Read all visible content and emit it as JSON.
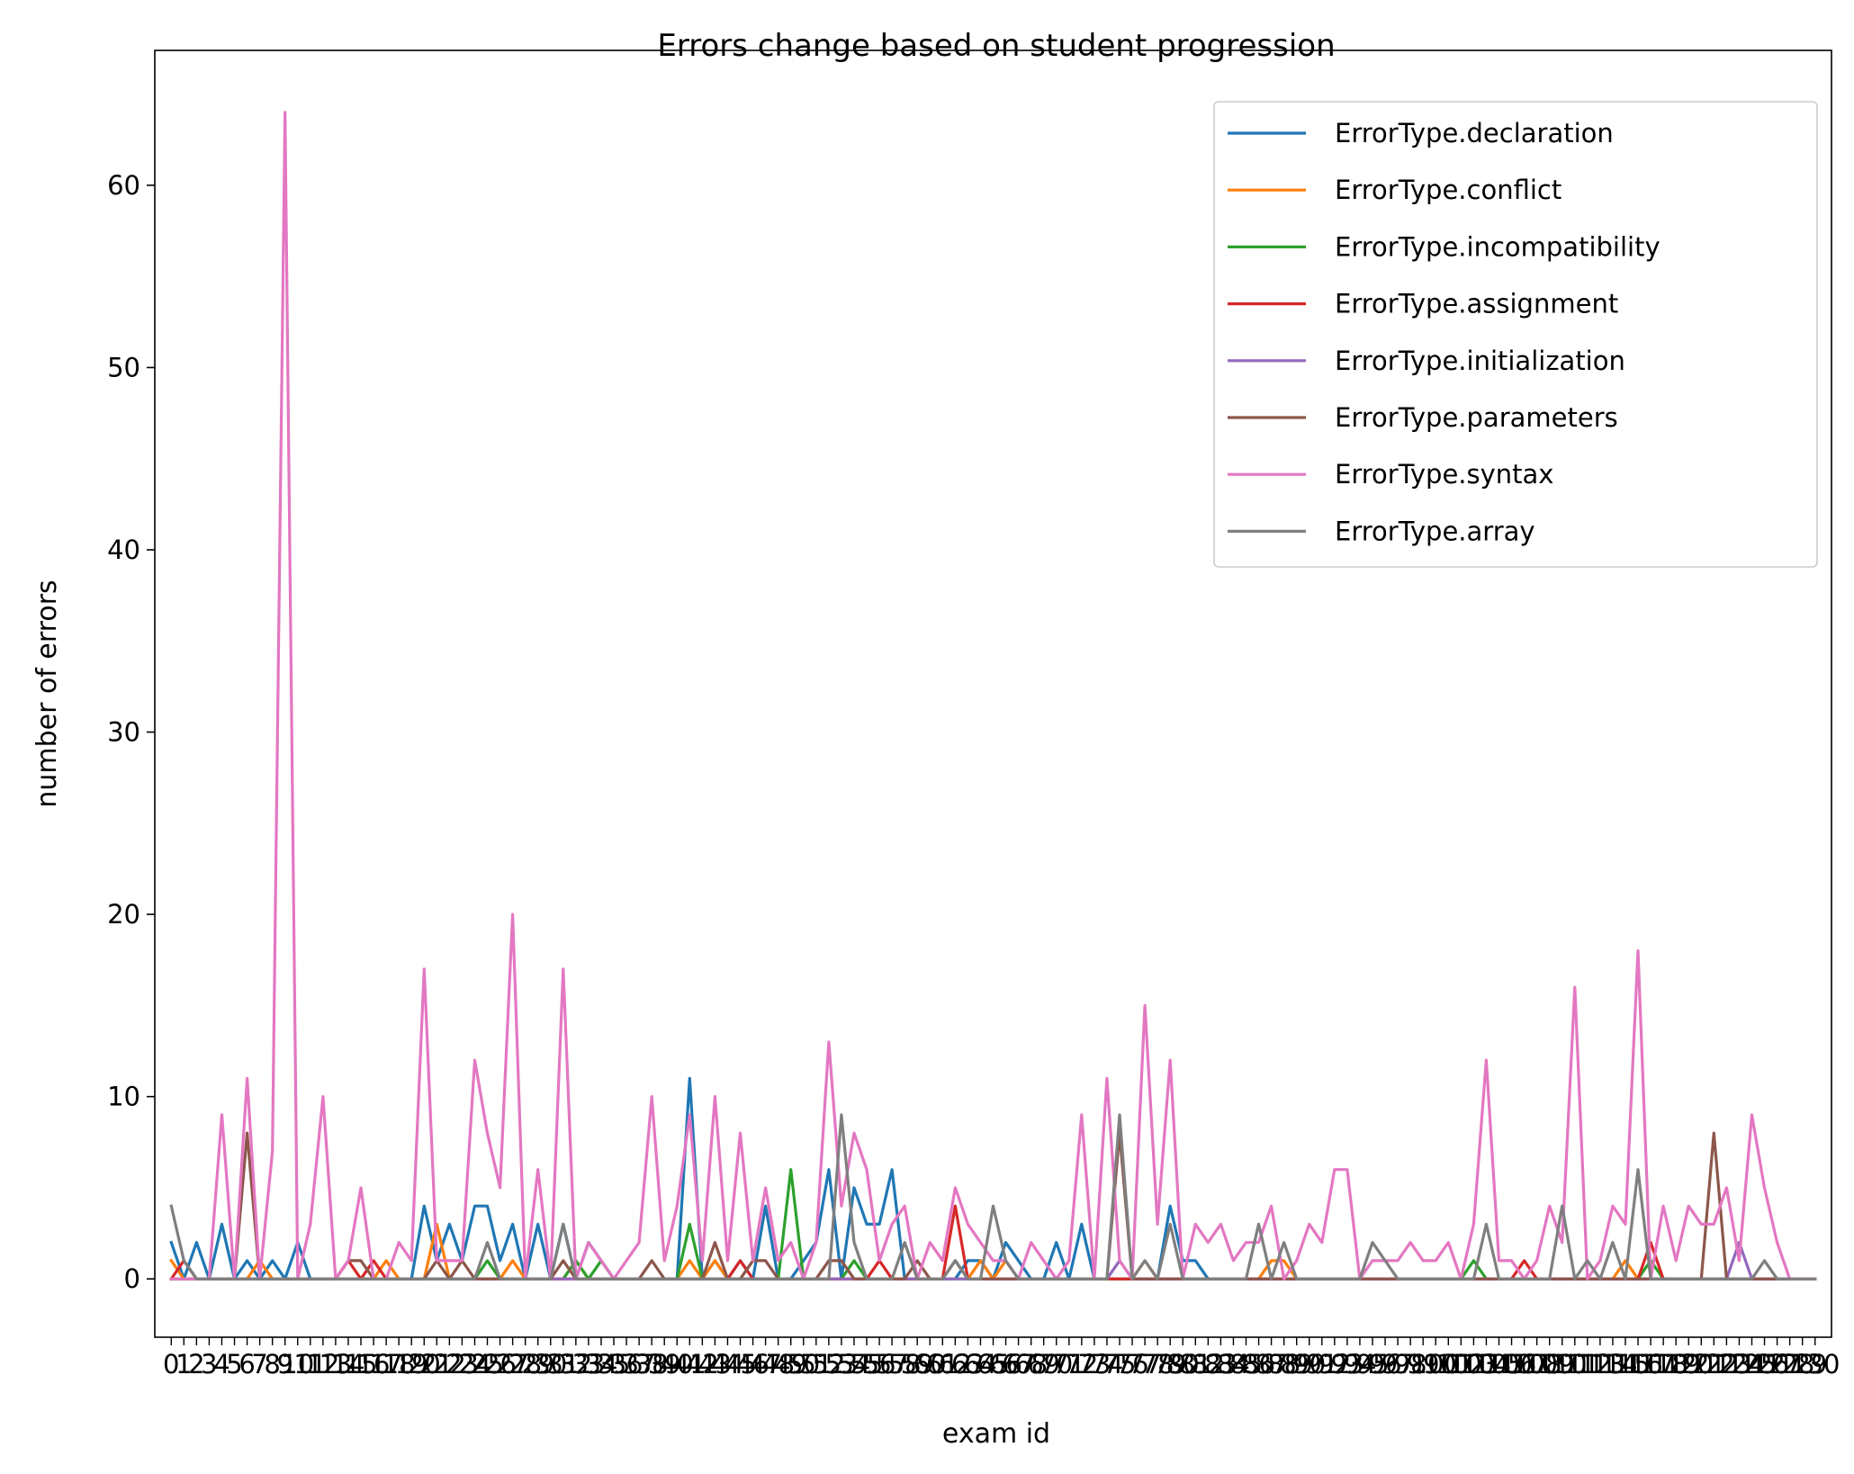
{
  "chart_data": {
    "type": "line",
    "title": "Errors change based on student progression",
    "xlabel": "exam id",
    "ylabel": "number of errors",
    "x_start": 0,
    "x_end": 130,
    "x_tick_step": 1,
    "xlim": [
      -1.3,
      131.3
    ],
    "ylim": [
      -3.2,
      67.4
    ],
    "y_ticks": [
      0,
      10,
      20,
      30,
      40,
      50,
      60
    ],
    "grid": false,
    "legend_position": "top-right",
    "series": [
      {
        "name": "ErrorType.declaration",
        "color": "#1f77b4",
        "values": [
          2,
          0,
          2,
          0,
          3,
          0,
          1,
          0,
          1,
          0,
          2,
          0,
          0,
          0,
          0,
          0,
          0,
          0,
          0,
          0,
          4,
          1,
          3,
          1,
          4,
          4,
          1,
          3,
          0,
          3,
          0,
          3,
          0,
          2,
          1,
          0,
          0,
          0,
          0,
          0,
          0,
          11,
          0,
          1,
          0,
          1,
          0,
          4,
          0,
          0,
          1,
          2,
          6,
          0,
          5,
          3,
          3,
          6,
          0,
          0,
          0,
          0,
          0,
          1,
          1,
          0,
          2,
          1,
          0,
          0,
          2,
          0,
          3,
          0,
          0,
          0,
          0,
          0,
          0,
          4,
          1,
          1,
          0,
          0,
          0,
          0,
          0,
          0,
          0,
          0,
          0,
          0,
          0,
          0,
          0,
          0,
          0,
          0,
          0,
          0,
          0,
          0,
          0,
          0,
          0,
          0,
          0,
          0,
          0,
          0,
          0,
          0,
          0,
          0,
          0,
          0,
          0,
          0,
          0,
          0,
          0,
          0,
          0,
          0,
          0,
          0,
          0,
          0,
          0,
          0,
          0
        ]
      },
      {
        "name": "ErrorType.conflict",
        "color": "#ff7f0e",
        "values": [
          1,
          0,
          0,
          0,
          0,
          0,
          0,
          1,
          0,
          0,
          0,
          0,
          0,
          0,
          0,
          0,
          0,
          1,
          0,
          0,
          0,
          3,
          0,
          0,
          0,
          0,
          0,
          1,
          0,
          0,
          0,
          0,
          1,
          0,
          0,
          0,
          0,
          0,
          0,
          0,
          0,
          1,
          0,
          1,
          0,
          0,
          0,
          0,
          0,
          0,
          0,
          0,
          0,
          0,
          0,
          0,
          0,
          0,
          0,
          0,
          0,
          0,
          1,
          0,
          1,
          0,
          1,
          0,
          0,
          0,
          0,
          0,
          0,
          0,
          0,
          0,
          0,
          1,
          0,
          0,
          0,
          0,
          0,
          0,
          0,
          0,
          0,
          1,
          1,
          0,
          0,
          0,
          0,
          0,
          0,
          0,
          0,
          0,
          0,
          0,
          0,
          0,
          0,
          0,
          0,
          0,
          0,
          0,
          0,
          0,
          0,
          0,
          0,
          0,
          0,
          1,
          0,
          0,
          0,
          0,
          0,
          0,
          0,
          0,
          0,
          0,
          0,
          0,
          0,
          0,
          0
        ]
      },
      {
        "name": "ErrorType.incompatibility",
        "color": "#2ca02c",
        "values": [
          0,
          0,
          0,
          0,
          0,
          0,
          0,
          0,
          0,
          0,
          0,
          0,
          0,
          0,
          0,
          0,
          0,
          0,
          0,
          0,
          0,
          0,
          0,
          0,
          0,
          1,
          0,
          0,
          0,
          0,
          0,
          0,
          1,
          0,
          1,
          0,
          0,
          0,
          0,
          0,
          0,
          3,
          0,
          0,
          0,
          0,
          0,
          0,
          0,
          6,
          0,
          0,
          0,
          0,
          1,
          0,
          0,
          0,
          0,
          0,
          0,
          0,
          0,
          0,
          0,
          0,
          0,
          0,
          0,
          0,
          0,
          0,
          0,
          0,
          0,
          0,
          0,
          0,
          0,
          0,
          0,
          0,
          0,
          0,
          0,
          0,
          0,
          0,
          0,
          0,
          0,
          0,
          0,
          0,
          0,
          0,
          0,
          0,
          0,
          0,
          0,
          0,
          0,
          1,
          0,
          0,
          0,
          0,
          0,
          0,
          0,
          0,
          0,
          0,
          0,
          0,
          0,
          1,
          0,
          0,
          0,
          0,
          0,
          0,
          0,
          0,
          0,
          0,
          0,
          0,
          0
        ]
      },
      {
        "name": "ErrorType.assignment",
        "color": "#d62728",
        "values": [
          0,
          1,
          0,
          0,
          0,
          0,
          0,
          0,
          0,
          0,
          0,
          0,
          0,
          0,
          1,
          0,
          1,
          0,
          0,
          0,
          0,
          0,
          0,
          0,
          0,
          0,
          0,
          0,
          0,
          0,
          0,
          0,
          0,
          0,
          0,
          0,
          0,
          0,
          0,
          0,
          0,
          0,
          0,
          0,
          0,
          1,
          0,
          0,
          0,
          0,
          0,
          0,
          0,
          0,
          0,
          0,
          1,
          0,
          0,
          0,
          0,
          0,
          4,
          0,
          0,
          0,
          0,
          0,
          0,
          0,
          0,
          0,
          0,
          0,
          0,
          0,
          0,
          0,
          0,
          0,
          0,
          0,
          0,
          0,
          0,
          0,
          0,
          0,
          0,
          0,
          0,
          0,
          0,
          0,
          0,
          0,
          0,
          0,
          0,
          0,
          0,
          0,
          0,
          0,
          0,
          0,
          0,
          1,
          0,
          0,
          0,
          0,
          0,
          0,
          0,
          0,
          0,
          2,
          0,
          0,
          0,
          0,
          0,
          0,
          0,
          0,
          0,
          0,
          0,
          0,
          0
        ]
      },
      {
        "name": "ErrorType.initialization",
        "color": "#9467bd",
        "values": [
          0,
          0,
          0,
          0,
          0,
          0,
          0,
          0,
          0,
          0,
          0,
          0,
          0,
          0,
          0,
          0,
          0,
          0,
          0,
          0,
          0,
          0,
          0,
          0,
          0,
          0,
          0,
          0,
          0,
          0,
          0,
          0,
          0,
          0,
          0,
          0,
          0,
          0,
          0,
          0,
          0,
          0,
          0,
          0,
          0,
          0,
          0,
          0,
          0,
          0,
          0,
          0,
          0,
          0,
          0,
          0,
          0,
          0,
          0,
          0,
          0,
          0,
          0,
          0,
          0,
          0,
          0,
          0,
          0,
          0,
          0,
          0,
          0,
          0,
          0,
          1,
          0,
          0,
          0,
          0,
          0,
          0,
          0,
          0,
          0,
          0,
          0,
          0,
          0,
          0,
          0,
          0,
          0,
          0,
          0,
          0,
          0,
          0,
          0,
          0,
          0,
          0,
          0,
          0,
          0,
          0,
          0,
          0,
          0,
          0,
          0,
          0,
          0,
          0,
          0,
          0,
          0,
          0,
          0,
          0,
          0,
          0,
          0,
          0,
          2,
          0,
          0,
          0,
          0,
          0,
          0
        ]
      },
      {
        "name": "ErrorType.parameters",
        "color": "#8c564b",
        "values": [
          0,
          0,
          0,
          0,
          0,
          0,
          8,
          0,
          0,
          0,
          0,
          0,
          0,
          0,
          1,
          1,
          0,
          0,
          0,
          0,
          0,
          1,
          0,
          1,
          0,
          0,
          0,
          0,
          0,
          0,
          0,
          1,
          0,
          0,
          0,
          0,
          0,
          0,
          1,
          0,
          0,
          0,
          0,
          2,
          0,
          0,
          1,
          1,
          0,
          0,
          0,
          0,
          1,
          1,
          0,
          0,
          0,
          0,
          0,
          1,
          0,
          0,
          1,
          0,
          0,
          0,
          0,
          0,
          0,
          0,
          0,
          0,
          0,
          0,
          0,
          8,
          0,
          0,
          0,
          0,
          0,
          0,
          0,
          0,
          0,
          0,
          0,
          0,
          0,
          0,
          0,
          0,
          0,
          0,
          0,
          0,
          0,
          0,
          0,
          0,
          0,
          0,
          0,
          0,
          0,
          0,
          0,
          0,
          0,
          0,
          0,
          0,
          0,
          0,
          0,
          0,
          0,
          0,
          0,
          0,
          0,
          0,
          8,
          0,
          0,
          0,
          0,
          0,
          0,
          0,
          0
        ]
      },
      {
        "name": "ErrorType.syntax",
        "color": "#e377c2",
        "values": [
          0,
          0,
          0,
          0,
          9,
          0,
          11,
          0,
          7,
          64,
          0,
          3,
          10,
          0,
          1,
          5,
          0,
          0,
          2,
          1,
          17,
          1,
          1,
          1,
          12,
          8,
          5,
          20,
          0,
          6,
          0,
          17,
          0,
          2,
          1,
          0,
          1,
          2,
          10,
          1,
          4,
          9,
          1,
          10,
          1,
          8,
          1,
          5,
          1,
          2,
          0,
          2,
          13,
          4,
          8,
          6,
          1,
          3,
          4,
          0,
          2,
          1,
          5,
          3,
          2,
          1,
          1,
          0,
          2,
          1,
          0,
          1,
          9,
          0,
          11,
          1,
          0,
          15,
          3,
          12,
          0,
          3,
          2,
          3,
          1,
          2,
          2,
          4,
          0,
          1,
          3,
          2,
          6,
          6,
          0,
          1,
          1,
          1,
          2,
          1,
          1,
          2,
          0,
          3,
          12,
          1,
          1,
          0,
          1,
          4,
          2,
          16,
          0,
          1,
          4,
          3,
          18,
          0,
          4,
          1,
          4,
          3,
          3,
          5,
          1,
          9,
          5,
          2,
          0,
          0,
          0
        ]
      },
      {
        "name": "ErrorType.array",
        "color": "#7f7f7f",
        "values": [
          4,
          1,
          0,
          0,
          0,
          0,
          0,
          0,
          0,
          0,
          0,
          0,
          0,
          0,
          0,
          0,
          0,
          0,
          0,
          0,
          0,
          0,
          0,
          0,
          0,
          2,
          0,
          0,
          0,
          0,
          0,
          3,
          0,
          0,
          0,
          0,
          0,
          0,
          0,
          0,
          0,
          0,
          0,
          0,
          0,
          0,
          0,
          0,
          0,
          0,
          0,
          0,
          0,
          9,
          2,
          0,
          0,
          0,
          2,
          0,
          0,
          0,
          1,
          0,
          0,
          4,
          1,
          0,
          0,
          0,
          0,
          0,
          0,
          0,
          0,
          9,
          0,
          1,
          0,
          3,
          0,
          0,
          0,
          0,
          0,
          0,
          3,
          0,
          2,
          0,
          0,
          0,
          0,
          0,
          0,
          2,
          1,
          0,
          0,
          0,
          0,
          0,
          0,
          0,
          3,
          0,
          0,
          0,
          0,
          0,
          4,
          0,
          1,
          0,
          2,
          0,
          6,
          0,
          0,
          0,
          0,
          0,
          0,
          0,
          0,
          0,
          1,
          0,
          0,
          0,
          0
        ]
      }
    ]
  }
}
